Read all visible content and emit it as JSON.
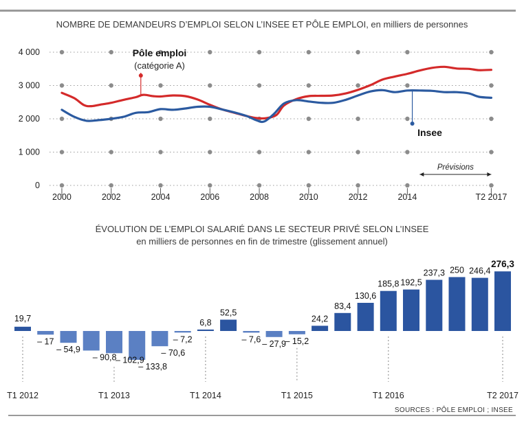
{
  "chart_data": [
    {
      "type": "line",
      "title": "NOMBRE DE DEMANDEURS D’EMPLOI SELON L’INSEE ET PÔLE EMPLOI, en milliers de personnes",
      "y_ticks": [
        "4 000",
        "3 000",
        "2 000",
        "1 000",
        "0"
      ],
      "y_tick_values": [
        4000,
        3000,
        2000,
        1000,
        0
      ],
      "ylim": [
        0,
        4000
      ],
      "x_range": [
        1999.5,
        2017.5
      ],
      "x_ticks": [
        "2000",
        "2002",
        "2004",
        "2006",
        "2008",
        "2010",
        "2012",
        "2014",
        "T2 2017"
      ],
      "x_tick_values": [
        2000,
        2002,
        2004,
        2006,
        2008,
        2010,
        2012,
        2014,
        2017.4
      ],
      "forecast_label": "Prévisions",
      "forecast_range": [
        2014.5,
        2017.4
      ],
      "series": [
        {
          "name": "Pôle emploi",
          "subname": "(catégorie A)",
          "color": "#d42a2a",
          "x": [
            2000.0,
            2000.5,
            2000.9,
            2001.2,
            2001.6,
            2002.0,
            2002.5,
            2003.0,
            2003.3,
            2003.7,
            2004.0,
            2004.5,
            2005.0,
            2005.5,
            2006.0,
            2006.5,
            2007.0,
            2007.5,
            2007.9,
            2008.3,
            2008.7,
            2009.0,
            2009.5,
            2010.0,
            2010.5,
            2011.0,
            2011.5,
            2012.0,
            2012.5,
            2013.0,
            2013.5,
            2014.0,
            2014.5,
            2015.0,
            2015.5,
            2016.0,
            2016.5,
            2016.9,
            2017.4
          ],
          "y": [
            2780,
            2620,
            2410,
            2380,
            2430,
            2480,
            2570,
            2650,
            2720,
            2680,
            2670,
            2700,
            2680,
            2580,
            2420,
            2280,
            2180,
            2080,
            2020,
            2020,
            2120,
            2400,
            2590,
            2680,
            2690,
            2700,
            2760,
            2870,
            3010,
            3180,
            3270,
            3350,
            3450,
            3530,
            3560,
            3510,
            3500,
            3460,
            3470
          ]
        },
        {
          "name": "Insee",
          "color": "#2b5aa0",
          "x": [
            2000.0,
            2000.5,
            2001.0,
            2001.5,
            2002.0,
            2002.5,
            2003.0,
            2003.5,
            2004.0,
            2004.5,
            2005.0,
            2005.5,
            2006.0,
            2006.5,
            2007.0,
            2007.5,
            2007.9,
            2008.2,
            2008.6,
            2009.0,
            2009.5,
            2010.0,
            2010.5,
            2011.0,
            2011.5,
            2012.0,
            2012.5,
            2013.0,
            2013.5,
            2014.0,
            2014.5,
            2015.0,
            2015.5,
            2016.0,
            2016.5,
            2016.9,
            2017.4
          ],
          "y": [
            2270,
            2060,
            1940,
            1960,
            2000,
            2060,
            2180,
            2200,
            2290,
            2270,
            2310,
            2360,
            2360,
            2280,
            2190,
            2080,
            1950,
            1920,
            2150,
            2460,
            2560,
            2520,
            2480,
            2480,
            2570,
            2700,
            2820,
            2860,
            2800,
            2850,
            2850,
            2840,
            2800,
            2800,
            2760,
            2660,
            2630
          ]
        }
      ]
    },
    {
      "type": "bar",
      "title": "ÉVOLUTION DE L’EMPLOI SALARIÉ DANS LE SECTEUR PRIVÉ SELON L’INSEE",
      "subtitle": "en milliers de personnes en fin de trimestre (glissement annuel)",
      "color": "#2b55a0",
      "color_negative": "#5b80c3",
      "values": [
        19.7,
        -17,
        -54.9,
        -90.8,
        -102.9,
        -133.8,
        -70.6,
        -7.2,
        6.8,
        52.5,
        -7.6,
        -27.9,
        -15.2,
        24.2,
        83.4,
        130.6,
        185.8,
        192.5,
        237.3,
        250,
        246.4,
        276.3
      ],
      "value_labels": [
        "19,7",
        "– 17",
        "– 54,9",
        "– 90,8",
        "– 102,9",
        "– 133,8",
        "– 70,6",
        "– 7,2",
        "6,8",
        "52,5",
        "– 7,6",
        "– 27,9",
        "– 15,2",
        "24,2",
        "83,4",
        "130,6",
        "185,8",
        "192,5",
        "237,3",
        "250",
        "246,4",
        "276,3"
      ],
      "x_ticks": [
        "T1 2012",
        "T1 2013",
        "T1 2014",
        "T1 2015",
        "T1 2016",
        "T2 2017"
      ],
      "x_tick_index": [
        0,
        4,
        8,
        12,
        16,
        21
      ]
    }
  ],
  "source": "SOURCES : PÔLE EMPLOI ; INSEE"
}
